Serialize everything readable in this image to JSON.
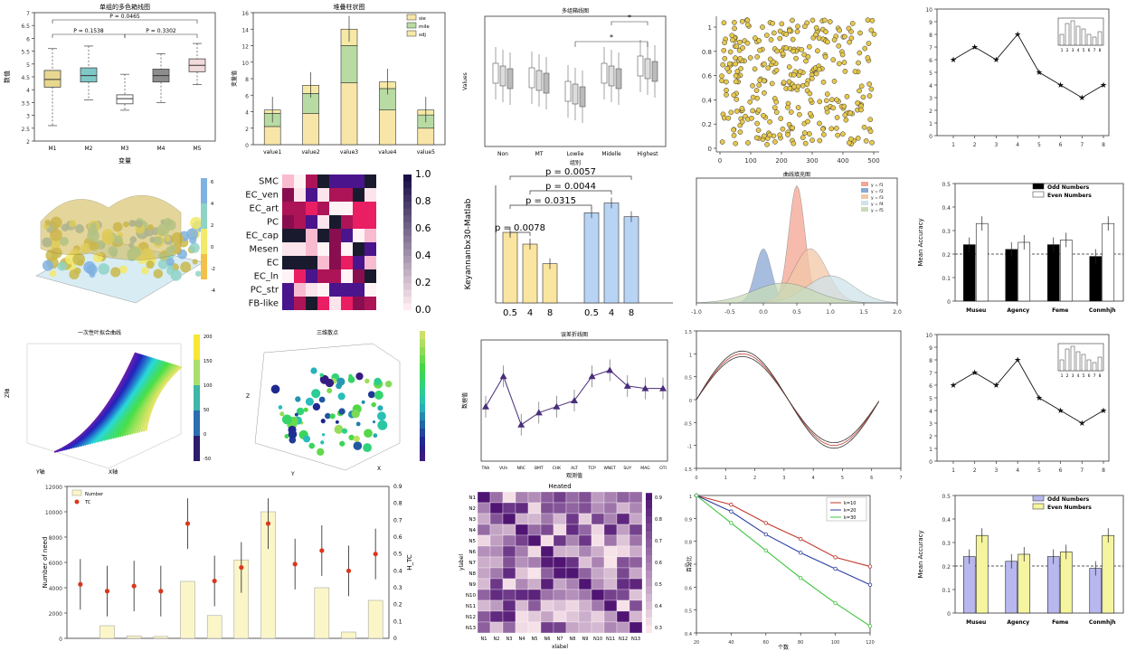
{
  "chart_data": [
    {
      "id": "p1",
      "type": "box",
      "title": "单组的多色箱线图",
      "xlabel": "变量",
      "ylabel": "数值",
      "categories": [
        "M1",
        "M2",
        "M3",
        "M4",
        "M5"
      ],
      "yticks": [
        "2",
        "2.5",
        "3",
        "3.5",
        "4",
        "4.5",
        "5",
        "5.5",
        "6",
        "6.5",
        "7"
      ],
      "ylim": [
        2,
        7
      ],
      "boxes": [
        {
          "min": 2.6,
          "q1": 4.1,
          "median": 4.4,
          "q3": 4.75,
          "max": 5.6,
          "color": "#e8d88f"
        },
        {
          "min": 3.6,
          "q1": 4.3,
          "median": 4.55,
          "q3": 4.85,
          "max": 5.7,
          "color": "#7fc8c8"
        },
        {
          "min": 3.2,
          "q1": 3.45,
          "median": 3.65,
          "q3": 3.8,
          "max": 4.6,
          "color": "#ffffff"
        },
        {
          "min": 3.5,
          "q1": 4.3,
          "median": 4.55,
          "q3": 4.8,
          "max": 5.4,
          "color": "#8c8c8c"
        },
        {
          "min": 4.2,
          "q1": 4.7,
          "median": 4.95,
          "q3": 5.2,
          "max": 5.8,
          "color": "#f2dada"
        }
      ],
      "annotations": [
        "P = 0.0465",
        "P = 0.1538",
        "P = 0.3302"
      ]
    },
    {
      "id": "p2",
      "type": "bar",
      "title": "堆叠柱状图",
      "ylabel": "变量值",
      "categories": [
        "value1",
        "value2",
        "value3",
        "value4",
        "value5"
      ],
      "yticks": [
        "0",
        "2",
        "4",
        "6",
        "8",
        "10",
        "12",
        "14",
        "16"
      ],
      "ylim": [
        0,
        16
      ],
      "series": [
        {
          "name": "sie",
          "values": [
            2.2,
            3.8,
            7.5,
            4.2,
            2.0
          ],
          "color": "#f7e6a8"
        },
        {
          "name": "mile",
          "values": [
            1.6,
            2.4,
            4.5,
            2.6,
            1.6
          ],
          "color": "#b8dba3"
        },
        {
          "name": "sdj",
          "values": [
            0.4,
            1.0,
            2.0,
            0.8,
            0.6
          ],
          "color": "#f6e9a6"
        }
      ]
    },
    {
      "id": "p3",
      "type": "box",
      "title": "多组箱线图",
      "xlabel": "组别",
      "ylabel": "Values",
      "categories": [
        "Non",
        "MT",
        "Lowlie",
        "Midelle",
        "Highest"
      ],
      "annotations": [
        "*",
        "*"
      ]
    },
    {
      "id": "p4",
      "type": "scatter",
      "xticks": [
        "0",
        "100",
        "200",
        "300",
        "400",
        "500"
      ],
      "yticks": [
        "0",
        "0.2",
        "0.4",
        "0.6",
        "0.8",
        "1"
      ],
      "xlim": [
        0,
        500
      ],
      "ylim": [
        0,
        1
      ],
      "color": "#e6c84d"
    },
    {
      "id": "p5",
      "type": "line",
      "x": [
        1,
        2,
        3,
        4,
        5,
        6,
        7,
        8
      ],
      "values": [
        6,
        7,
        6,
        8,
        5,
        4,
        3,
        4
      ],
      "xticks": [
        "1",
        "2",
        "3",
        "4",
        "5",
        "6",
        "7",
        "8"
      ],
      "yticks": [
        "0",
        "1",
        "2",
        "3",
        "4",
        "5",
        "6",
        "7",
        "8",
        "9",
        "10"
      ],
      "inset_values": [
        4,
        8,
        9,
        7,
        6,
        4,
        3,
        5
      ]
    },
    {
      "id": "p6",
      "type": "surface3d",
      "colorbar": {
        "ticks": [
          "-4",
          "-2",
          "0",
          "2",
          "4",
          "6"
        ],
        "colors": [
          "#7fb2e0",
          "#8fd3c7",
          "#f3e96a",
          "#f2c14a"
        ]
      }
    },
    {
      "id": "p7",
      "type": "heatmap",
      "rows": [
        "SMC",
        "EC_ven",
        "EC_art",
        "PC",
        "EC_cap",
        "Mesen",
        "EC",
        "EC_ln",
        "PC_str",
        "FB-like"
      ],
      "colorbar": [
        "0.0",
        "0.2",
        "0.4",
        "0.6",
        "0.8",
        "1.0"
      ]
    },
    {
      "id": "p8",
      "type": "bar",
      "ylabel": "Keyannanbx30-Matlab",
      "categories": [
        "0.5",
        "4",
        "8",
        "0.5",
        "4",
        "8"
      ],
      "values": [
        1.8,
        1.5,
        1.0,
        2.3,
        2.55,
        2.2
      ],
      "colors": [
        "#fae5a0",
        "#fae5a0",
        "#fae5a0",
        "#b8d4f4",
        "#b8d4f4",
        "#b8d4f4"
      ],
      "annotations": [
        "p = 0.0057",
        "p = 0.0044",
        "p = 0.0315",
        "p = 0.0078"
      ]
    },
    {
      "id": "p9",
      "type": "area",
      "title": "曲线填充图",
      "xticks": [
        "-1.0",
        "-0.5",
        "0.0",
        "0.5",
        "1.0",
        "1.5",
        "2.0"
      ],
      "legend": [
        "y = f1",
        "y = f2",
        "y = f3",
        "y = f4",
        "y = f5"
      ]
    },
    {
      "id": "p10",
      "type": "bar",
      "ylabel": "Mean Accuracy",
      "categories": [
        "Museu",
        "Agency",
        "Feme",
        "Conmhjh"
      ],
      "yticks": [
        "0",
        "0.1",
        "0.2",
        "0.3",
        "0.4",
        "0.5"
      ],
      "ylim": [
        0,
        0.5
      ],
      "series": [
        {
          "name": "Odd Numbers",
          "values": [
            0.24,
            0.22,
            0.24,
            0.19
          ],
          "color": "#000000"
        },
        {
          "name": "Even Numbers",
          "values": [
            0.33,
            0.25,
            0.26,
            0.33
          ],
          "color": "#ffffff"
        }
      ]
    },
    {
      "id": "p11",
      "type": "surface3d",
      "title": "一次性叶拟合曲线",
      "xlabel": "X轴",
      "ylabel": "Y轴",
      "zlabel": "Z轴",
      "colorbar": {
        "ticks": [
          "200",
          "150",
          "100",
          "50",
          "0",
          "-50"
        ],
        "colors": [
          "#2d1b6b",
          "#2c6db3",
          "#3cb7a8",
          "#a8e06b",
          "#f6e733"
        ]
      }
    },
    {
      "id": "p12",
      "type": "scatter3d",
      "title": "三维散点",
      "xlabel": "X",
      "ylabel": "Y",
      "zlabel": "Z"
    },
    {
      "id": "p13",
      "type": "line",
      "title": "误差折线图",
      "xlabel": "观测值",
      "ylabel": "数据值",
      "categories": [
        "TNh",
        "VUh",
        "NRC",
        "BMT",
        "CHK",
        "ALT",
        "TCP",
        "WNET",
        "SUY",
        "MAG",
        "OTI"
      ],
      "values": [
        0.45,
        0.7,
        0.3,
        0.4,
        0.45,
        0.5,
        0.7,
        0.75,
        0.62,
        0.6,
        0.6
      ]
    },
    {
      "id": "p14",
      "type": "line",
      "xticks": [
        "0",
        "1",
        "2",
        "3",
        "4",
        "5",
        "6",
        "7"
      ],
      "yticks": [
        "-1.5",
        "-1",
        "-0.5",
        "0",
        "0.5",
        "1",
        "1.5"
      ],
      "xlim": [
        0,
        7
      ],
      "ylim": [
        -1.5,
        1.5
      ]
    },
    {
      "id": "p15",
      "type": "line",
      "x": [
        1,
        2,
        3,
        4,
        5,
        6,
        7,
        8
      ],
      "values": [
        6,
        7,
        6,
        8,
        5,
        4,
        3,
        4
      ],
      "xticks": [
        "1",
        "2",
        "3",
        "4",
        "5",
        "6",
        "7",
        "8"
      ],
      "yticks": [
        "0",
        "1",
        "2",
        "3",
        "4",
        "5",
        "6",
        "7",
        "8",
        "9",
        "10"
      ],
      "inset_values": [
        4,
        8,
        9,
        7,
        6,
        4,
        3,
        5
      ]
    },
    {
      "id": "p16",
      "type": "bar",
      "ylabel": "Number of need",
      "y2label": "H_TC",
      "yticks": [
        "0",
        "2000",
        "4000",
        "6000",
        "8000",
        "10000",
        "12000"
      ],
      "y2ticks": [
        "0",
        "0.1",
        "0.2",
        "0.3",
        "0.4",
        "0.5",
        "0.6",
        "0.7",
        "0.8",
        "0.9"
      ],
      "ylim": [
        0,
        12000
      ],
      "legend": [
        "Number",
        "TC"
      ],
      "values": [
        0,
        1000,
        200,
        150,
        4500,
        1800,
        6200,
        10000,
        0,
        4000,
        500,
        3000
      ],
      "tc_values": [
        0.32,
        0.28,
        0.31,
        0.28,
        0.68,
        0.34,
        0.42,
        0.68,
        0.44,
        0.52,
        0.4,
        0.5
      ]
    },
    {
      "id": "p17",
      "type": "heatmap",
      "title": "Heated",
      "xlabel": "xlabel",
      "ylabel": "ylabel",
      "rows": [
        "N1",
        "N2",
        "N3",
        "N4",
        "N5",
        "N6",
        "N7",
        "N8",
        "N9",
        "N10",
        "N11",
        "N12",
        "N13"
      ],
      "cols": [
        "N1",
        "N2",
        "N3",
        "N4",
        "N5",
        "N6",
        "N7",
        "N8",
        "N9",
        "N10",
        "N11",
        "N12",
        "N13"
      ],
      "colorbar": [
        "0.3",
        "0.4",
        "0.5",
        "0.6",
        "0.7",
        "0.8",
        "0.9"
      ]
    },
    {
      "id": "p18",
      "type": "line",
      "xlabel": "个数",
      "ylabel": "百分比",
      "x": [
        20,
        40,
        60,
        80,
        100,
        120
      ],
      "xticks": [
        "20",
        "40",
        "60",
        "80",
        "100",
        "120"
      ],
      "yticks": [
        "0.4",
        "0.5",
        "0.6",
        "0.7",
        "0.8",
        "0.9",
        "1"
      ],
      "ylim": [
        0.4,
        1.0
      ],
      "series": [
        {
          "name": "k=10",
          "values": [
            1.0,
            0.96,
            0.88,
            0.81,
            0.73,
            0.69
          ],
          "color": "#c0392b"
        },
        {
          "name": "k=20",
          "values": [
            1.0,
            0.93,
            0.83,
            0.75,
            0.68,
            0.61
          ],
          "color": "#2c3e9e"
        },
        {
          "name": "k=30",
          "values": [
            1.0,
            0.88,
            0.76,
            0.64,
            0.53,
            0.43
          ],
          "color": "#3cc43c"
        }
      ]
    },
    {
      "id": "p19",
      "type": "bar",
      "ylabel": "Mean Accuracy",
      "categories": [
        "Museu",
        "Agency",
        "Feme",
        "Conmhjh"
      ],
      "yticks": [
        "0",
        "0.1",
        "0.2",
        "0.3",
        "0.4",
        "0.5"
      ],
      "ylim": [
        0,
        0.5
      ],
      "series": [
        {
          "name": "Odd Numbers",
          "values": [
            0.24,
            0.22,
            0.24,
            0.19
          ],
          "color": "#b8b8ee"
        },
        {
          "name": "Even Numbers",
          "values": [
            0.33,
            0.25,
            0.26,
            0.33
          ],
          "color": "#f5f5a0"
        }
      ]
    }
  ]
}
